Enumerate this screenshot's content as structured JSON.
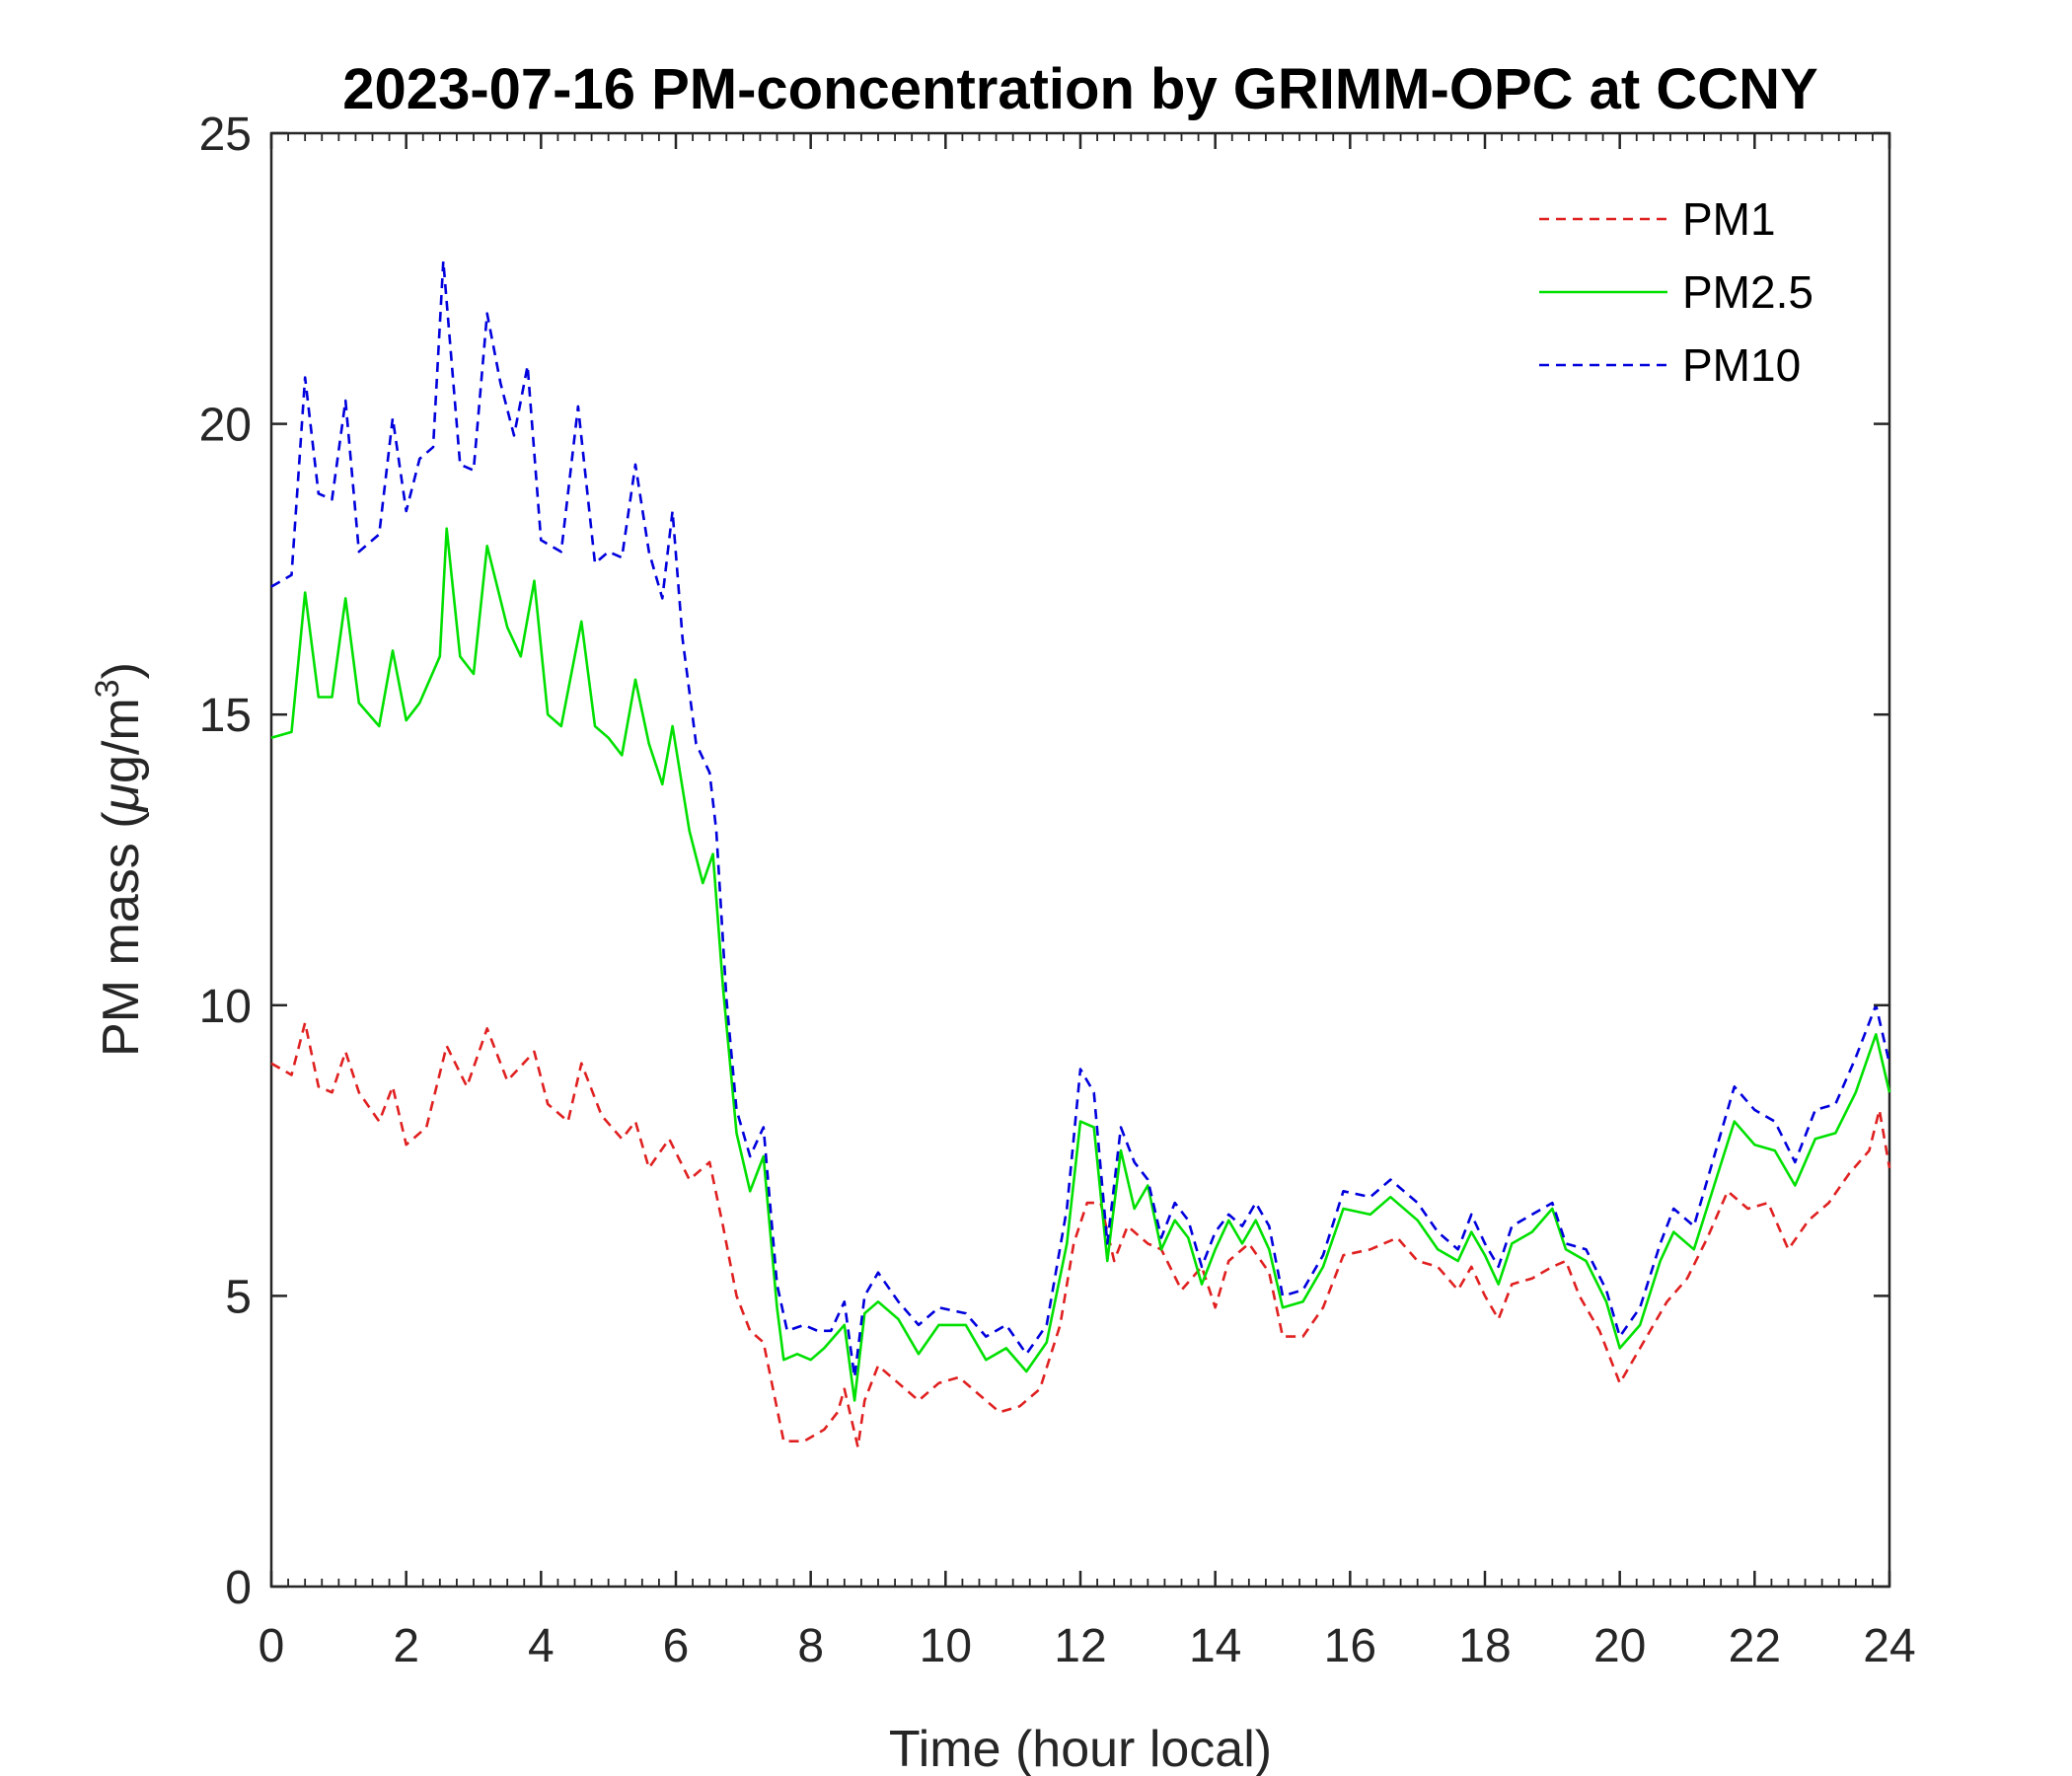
{
  "chart_data": {
    "type": "line",
    "title": "2023-07-16 PM-concentration by GRIMM-OPC at CCNY",
    "xlabel": "Time (hour local)",
    "ylabel_main": "PM mass (",
    "ylabel_mu": "μ",
    "ylabel_unit": "g/m",
    "ylabel_sup": "3",
    "ylabel_close": ")",
    "xlim": [
      0,
      24
    ],
    "ylim": [
      0,
      25
    ],
    "xticks": [
      "0",
      "2",
      "4",
      "6",
      "8",
      "10",
      "12",
      "14",
      "16",
      "18",
      "20",
      "22",
      "24"
    ],
    "yticks": [
      "0",
      "5",
      "10",
      "15",
      "20",
      "25"
    ],
    "legend_position": "top-right",
    "series": [
      {
        "name": "PM1",
        "color": "#e02020",
        "style": "dashed",
        "points": [
          [
            0,
            9.0
          ],
          [
            0.3,
            8.8
          ],
          [
            0.5,
            9.7
          ],
          [
            0.7,
            8.6
          ],
          [
            0.9,
            8.5
          ],
          [
            1.1,
            9.2
          ],
          [
            1.3,
            8.5
          ],
          [
            1.6,
            8.0
          ],
          [
            1.8,
            8.6
          ],
          [
            2.0,
            7.6
          ],
          [
            2.3,
            7.9
          ],
          [
            2.6,
            9.3
          ],
          [
            2.9,
            8.6
          ],
          [
            3.2,
            9.6
          ],
          [
            3.5,
            8.7
          ],
          [
            3.9,
            9.2
          ],
          [
            4.1,
            8.3
          ],
          [
            4.4,
            8.0
          ],
          [
            4.6,
            9.0
          ],
          [
            4.9,
            8.1
          ],
          [
            5.2,
            7.7
          ],
          [
            5.4,
            8.0
          ],
          [
            5.6,
            7.2
          ],
          [
            5.9,
            7.7
          ],
          [
            6.2,
            7.0
          ],
          [
            6.5,
            7.3
          ],
          [
            6.7,
            6.2
          ],
          [
            6.9,
            5.0
          ],
          [
            7.1,
            4.4
          ],
          [
            7.3,
            4.2
          ],
          [
            7.6,
            2.5
          ],
          [
            7.9,
            2.5
          ],
          [
            8.2,
            2.7
          ],
          [
            8.4,
            3.0
          ],
          [
            8.5,
            3.4
          ],
          [
            8.7,
            2.4
          ],
          [
            8.8,
            3.2
          ],
          [
            9.0,
            3.8
          ],
          [
            9.3,
            3.5
          ],
          [
            9.6,
            3.2
          ],
          [
            9.9,
            3.5
          ],
          [
            10.2,
            3.6
          ],
          [
            10.5,
            3.3
          ],
          [
            10.8,
            3.0
          ],
          [
            11.1,
            3.1
          ],
          [
            11.4,
            3.4
          ],
          [
            11.7,
            4.5
          ],
          [
            11.9,
            5.9
          ],
          [
            12.1,
            6.6
          ],
          [
            12.3,
            6.6
          ],
          [
            12.5,
            5.6
          ],
          [
            12.7,
            6.2
          ],
          [
            13.0,
            5.9
          ],
          [
            13.2,
            5.8
          ],
          [
            13.5,
            5.1
          ],
          [
            13.8,
            5.5
          ],
          [
            14.0,
            4.8
          ],
          [
            14.2,
            5.6
          ],
          [
            14.5,
            5.9
          ],
          [
            14.8,
            5.4
          ],
          [
            15.0,
            4.3
          ],
          [
            15.3,
            4.3
          ],
          [
            15.6,
            4.8
          ],
          [
            15.9,
            5.7
          ],
          [
            16.3,
            5.8
          ],
          [
            16.7,
            6.0
          ],
          [
            17.0,
            5.6
          ],
          [
            17.3,
            5.5
          ],
          [
            17.6,
            5.1
          ],
          [
            17.8,
            5.5
          ],
          [
            18.0,
            5.0
          ],
          [
            18.2,
            4.6
          ],
          [
            18.4,
            5.2
          ],
          [
            18.7,
            5.3
          ],
          [
            19.0,
            5.5
          ],
          [
            19.2,
            5.6
          ],
          [
            19.4,
            5.0
          ],
          [
            19.7,
            4.4
          ],
          [
            20.0,
            3.5
          ],
          [
            20.3,
            4.1
          ],
          [
            20.7,
            4.9
          ],
          [
            21.0,
            5.3
          ],
          [
            21.3,
            6.0
          ],
          [
            21.6,
            6.8
          ],
          [
            21.9,
            6.5
          ],
          [
            22.2,
            6.6
          ],
          [
            22.5,
            5.8
          ],
          [
            22.8,
            6.3
          ],
          [
            23.1,
            6.6
          ],
          [
            23.4,
            7.1
          ],
          [
            23.7,
            7.5
          ],
          [
            23.85,
            8.2
          ],
          [
            24,
            7.2
          ]
        ]
      },
      {
        "name": "PM2.5",
        "color": "#00e000",
        "style": "solid",
        "points": [
          [
            0,
            14.6
          ],
          [
            0.3,
            14.7
          ],
          [
            0.5,
            17.1
          ],
          [
            0.7,
            15.3
          ],
          [
            0.9,
            15.3
          ],
          [
            1.1,
            17.0
          ],
          [
            1.3,
            15.2
          ],
          [
            1.6,
            14.8
          ],
          [
            1.8,
            16.1
          ],
          [
            2.0,
            14.9
          ],
          [
            2.2,
            15.2
          ],
          [
            2.5,
            16.0
          ],
          [
            2.6,
            18.2
          ],
          [
            2.8,
            16.0
          ],
          [
            3.0,
            15.7
          ],
          [
            3.2,
            17.9
          ],
          [
            3.5,
            16.5
          ],
          [
            3.7,
            16.0
          ],
          [
            3.9,
            17.3
          ],
          [
            4.1,
            15.0
          ],
          [
            4.3,
            14.8
          ],
          [
            4.6,
            16.6
          ],
          [
            4.8,
            14.8
          ],
          [
            5.0,
            14.6
          ],
          [
            5.2,
            14.3
          ],
          [
            5.4,
            15.6
          ],
          [
            5.6,
            14.5
          ],
          [
            5.8,
            13.8
          ],
          [
            5.95,
            14.8
          ],
          [
            6.2,
            13.0
          ],
          [
            6.4,
            12.1
          ],
          [
            6.55,
            12.6
          ],
          [
            6.7,
            10.3
          ],
          [
            6.9,
            7.8
          ],
          [
            7.1,
            6.8
          ],
          [
            7.3,
            7.4
          ],
          [
            7.5,
            4.8
          ],
          [
            7.6,
            3.9
          ],
          [
            7.8,
            4.0
          ],
          [
            8.0,
            3.9
          ],
          [
            8.2,
            4.1
          ],
          [
            8.5,
            4.5
          ],
          [
            8.65,
            3.2
          ],
          [
            8.8,
            4.7
          ],
          [
            9.0,
            4.9
          ],
          [
            9.3,
            4.6
          ],
          [
            9.6,
            4.0
          ],
          [
            9.9,
            4.5
          ],
          [
            10.3,
            4.5
          ],
          [
            10.6,
            3.9
          ],
          [
            10.9,
            4.1
          ],
          [
            11.2,
            3.7
          ],
          [
            11.5,
            4.2
          ],
          [
            11.8,
            5.9
          ],
          [
            12.0,
            8.0
          ],
          [
            12.2,
            7.9
          ],
          [
            12.4,
            5.6
          ],
          [
            12.6,
            7.5
          ],
          [
            12.8,
            6.5
          ],
          [
            13.0,
            6.9
          ],
          [
            13.2,
            5.8
          ],
          [
            13.4,
            6.3
          ],
          [
            13.6,
            6.0
          ],
          [
            13.8,
            5.2
          ],
          [
            14.0,
            5.8
          ],
          [
            14.2,
            6.3
          ],
          [
            14.4,
            5.9
          ],
          [
            14.6,
            6.3
          ],
          [
            14.8,
            5.8
          ],
          [
            15.0,
            4.8
          ],
          [
            15.3,
            4.9
          ],
          [
            15.6,
            5.5
          ],
          [
            15.9,
            6.5
          ],
          [
            16.3,
            6.4
          ],
          [
            16.6,
            6.7
          ],
          [
            17.0,
            6.3
          ],
          [
            17.3,
            5.8
          ],
          [
            17.6,
            5.6
          ],
          [
            17.8,
            6.1
          ],
          [
            18.0,
            5.7
          ],
          [
            18.2,
            5.2
          ],
          [
            18.4,
            5.9
          ],
          [
            18.7,
            6.1
          ],
          [
            19.0,
            6.5
          ],
          [
            19.2,
            5.8
          ],
          [
            19.5,
            5.6
          ],
          [
            19.8,
            4.9
          ],
          [
            20.0,
            4.1
          ],
          [
            20.3,
            4.5
          ],
          [
            20.6,
            5.6
          ],
          [
            20.8,
            6.1
          ],
          [
            21.1,
            5.8
          ],
          [
            21.4,
            6.9
          ],
          [
            21.7,
            8.0
          ],
          [
            22.0,
            7.6
          ],
          [
            22.3,
            7.5
          ],
          [
            22.6,
            6.9
          ],
          [
            22.9,
            7.7
          ],
          [
            23.2,
            7.8
          ],
          [
            23.5,
            8.5
          ],
          [
            23.8,
            9.5
          ],
          [
            24,
            8.5
          ]
        ]
      },
      {
        "name": "PM10",
        "color": "#0000dd",
        "style": "dashed",
        "points": [
          [
            0,
            17.2
          ],
          [
            0.3,
            17.4
          ],
          [
            0.5,
            20.8
          ],
          [
            0.7,
            18.8
          ],
          [
            0.9,
            18.7
          ],
          [
            1.1,
            20.4
          ],
          [
            1.3,
            17.8
          ],
          [
            1.6,
            18.1
          ],
          [
            1.8,
            20.1
          ],
          [
            2.0,
            18.5
          ],
          [
            2.2,
            19.4
          ],
          [
            2.4,
            19.6
          ],
          [
            2.55,
            22.8
          ],
          [
            2.8,
            19.3
          ],
          [
            3.0,
            19.2
          ],
          [
            3.2,
            21.9
          ],
          [
            3.4,
            20.7
          ],
          [
            3.6,
            19.8
          ],
          [
            3.8,
            21.0
          ],
          [
            4.0,
            18.0
          ],
          [
            4.3,
            17.8
          ],
          [
            4.55,
            20.3
          ],
          [
            4.8,
            17.6
          ],
          [
            5.0,
            17.8
          ],
          [
            5.2,
            17.7
          ],
          [
            5.4,
            19.3
          ],
          [
            5.6,
            17.8
          ],
          [
            5.8,
            17.0
          ],
          [
            5.95,
            18.5
          ],
          [
            6.1,
            16.3
          ],
          [
            6.3,
            14.5
          ],
          [
            6.5,
            14.0
          ],
          [
            6.6,
            13.0
          ],
          [
            6.75,
            10.1
          ],
          [
            6.9,
            8.2
          ],
          [
            7.1,
            7.4
          ],
          [
            7.3,
            7.9
          ],
          [
            7.5,
            5.2
          ],
          [
            7.65,
            4.4
          ],
          [
            7.9,
            4.5
          ],
          [
            8.1,
            4.4
          ],
          [
            8.3,
            4.4
          ],
          [
            8.5,
            4.9
          ],
          [
            8.65,
            3.6
          ],
          [
            8.8,
            5.0
          ],
          [
            9.0,
            5.4
          ],
          [
            9.3,
            4.9
          ],
          [
            9.6,
            4.5
          ],
          [
            9.9,
            4.8
          ],
          [
            10.3,
            4.7
          ],
          [
            10.6,
            4.3
          ],
          [
            10.9,
            4.5
          ],
          [
            11.2,
            4.0
          ],
          [
            11.5,
            4.5
          ],
          [
            11.8,
            6.5
          ],
          [
            12.0,
            8.9
          ],
          [
            12.2,
            8.5
          ],
          [
            12.4,
            5.9
          ],
          [
            12.6,
            7.9
          ],
          [
            12.8,
            7.3
          ],
          [
            13.0,
            7.0
          ],
          [
            13.2,
            6.0
          ],
          [
            13.4,
            6.6
          ],
          [
            13.6,
            6.3
          ],
          [
            13.8,
            5.5
          ],
          [
            14.0,
            6.1
          ],
          [
            14.2,
            6.4
          ],
          [
            14.4,
            6.2
          ],
          [
            14.6,
            6.6
          ],
          [
            14.8,
            6.2
          ],
          [
            15.0,
            5.0
          ],
          [
            15.3,
            5.1
          ],
          [
            15.6,
            5.7
          ],
          [
            15.9,
            6.8
          ],
          [
            16.3,
            6.7
          ],
          [
            16.6,
            7.0
          ],
          [
            17.0,
            6.6
          ],
          [
            17.3,
            6.1
          ],
          [
            17.6,
            5.8
          ],
          [
            17.8,
            6.4
          ],
          [
            18.0,
            5.9
          ],
          [
            18.2,
            5.5
          ],
          [
            18.4,
            6.2
          ],
          [
            18.7,
            6.4
          ],
          [
            19.0,
            6.6
          ],
          [
            19.2,
            5.9
          ],
          [
            19.5,
            5.8
          ],
          [
            19.8,
            5.1
          ],
          [
            20.0,
            4.3
          ],
          [
            20.3,
            4.8
          ],
          [
            20.6,
            5.9
          ],
          [
            20.8,
            6.5
          ],
          [
            21.1,
            6.2
          ],
          [
            21.4,
            7.4
          ],
          [
            21.7,
            8.6
          ],
          [
            22.0,
            8.2
          ],
          [
            22.3,
            8.0
          ],
          [
            22.6,
            7.3
          ],
          [
            22.9,
            8.2
          ],
          [
            23.2,
            8.3
          ],
          [
            23.5,
            9.1
          ],
          [
            23.8,
            10.0
          ],
          [
            24,
            9.0
          ]
        ]
      }
    ]
  }
}
